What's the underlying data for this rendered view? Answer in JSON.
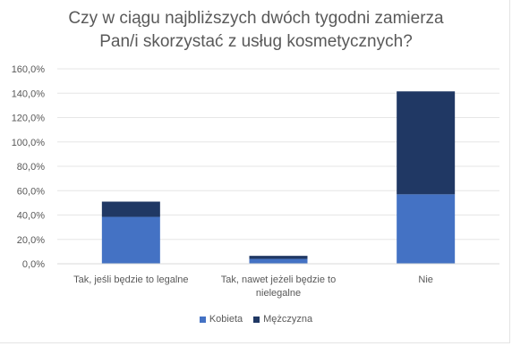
{
  "chart_data": {
    "type": "bar",
    "stacked": true,
    "title_lines": [
      "Czy w ciągu najbliższych dwóch tygodni zamierza",
      "Pan/i skorzystać z usług kosmetycznych?"
    ],
    "categories": [
      [
        "Tak, jeśli będzie to legalne"
      ],
      [
        "Tak, nawet jeżeli będzie to",
        "nielegalne"
      ],
      [
        "Nie"
      ]
    ],
    "series": [
      {
        "name": "Kobieta",
        "color": "#4472C4",
        "values": [
          38.5,
          4.0,
          57.0
        ]
      },
      {
        "name": "Mężczyzna",
        "color": "#203864",
        "values": [
          12.5,
          2.5,
          84.5
        ]
      }
    ],
    "ylim": [
      0,
      160
    ],
    "yticks": [
      "0,0%",
      "20,0%",
      "40,0%",
      "60,0%",
      "80,0%",
      "100,0%",
      "120,0%",
      "140,0%",
      "160,0%"
    ],
    "grid": true,
    "legend_position": "bottom"
  }
}
